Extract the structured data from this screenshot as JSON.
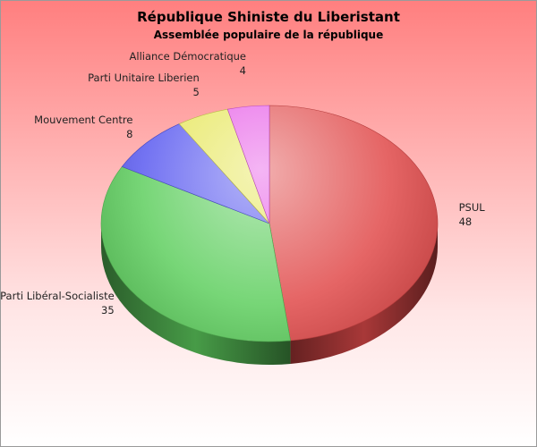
{
  "chart_data": {
    "type": "pie",
    "title": "République Shiniste du Liberistant",
    "subtitle": "Assemblée populaire de la république",
    "slices": [
      {
        "label": "PSUL",
        "value": 48,
        "color": "#e04a4a"
      },
      {
        "label": "Parti Libéral-Socialiste",
        "value": 35,
        "color": "#5fcf5f"
      },
      {
        "label": "Mouvement Centre",
        "value": 8,
        "color": "#5a5af0"
      },
      {
        "label": "Parti Unitaire Liberien",
        "value": 5,
        "color": "#e6e65a"
      },
      {
        "label": "Alliance Démocratique",
        "value": 4,
        "color": "#e65ae6"
      }
    ]
  }
}
